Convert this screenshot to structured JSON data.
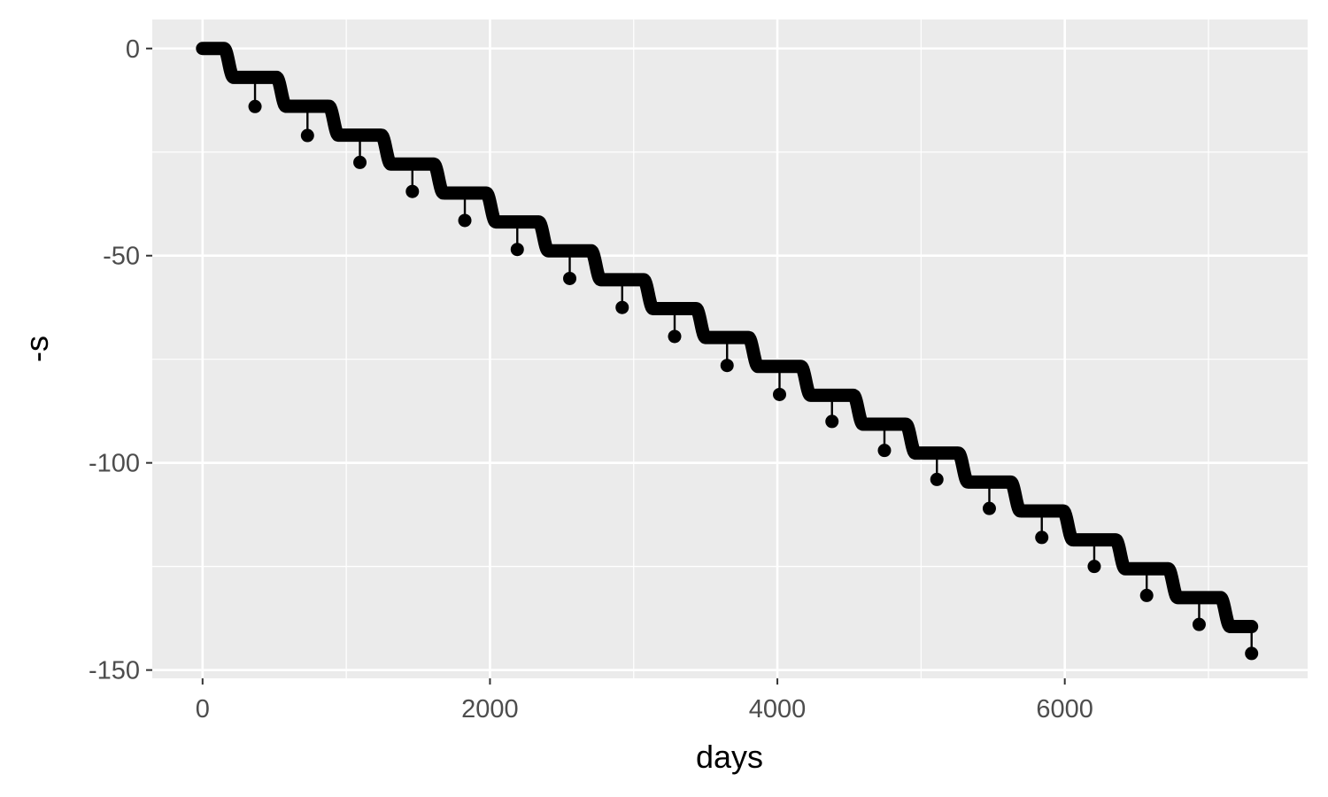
{
  "chart_data": {
    "type": "scatter",
    "xlabel": "days",
    "ylabel": "-s",
    "xlim": [
      -350,
      7690
    ],
    "ylim": [
      -152,
      7
    ],
    "x_ticks": [
      0,
      2000,
      4000,
      6000
    ],
    "x_tick_labels": [
      "0",
      "2000",
      "4000",
      "6000"
    ],
    "y_ticks": [
      0,
      -50,
      -100,
      -150
    ],
    "y_tick_labels": [
      "0",
      "-50",
      "-100",
      "-150"
    ],
    "grid": true,
    "series": [
      {
        "style": "thick continuous point trace: gradual decline of about 7 per year with a seasonal step each year",
        "x_range": [
          0,
          7300
        ],
        "y_start": 0,
        "y_end": -139.5,
        "color": "#000000"
      },
      {
        "style": "annual points with vertical drop lines from the trace",
        "points": [
          {
            "x": 365,
            "y": -14
          },
          {
            "x": 730,
            "y": -21
          },
          {
            "x": 1095,
            "y": -27.5
          },
          {
            "x": 1460,
            "y": -34.5
          },
          {
            "x": 1825,
            "y": -41.5
          },
          {
            "x": 2190,
            "y": -48.5
          },
          {
            "x": 2555,
            "y": -55.5
          },
          {
            "x": 2920,
            "y": -62.5
          },
          {
            "x": 3285,
            "y": -69.5
          },
          {
            "x": 3650,
            "y": -76.5
          },
          {
            "x": 4015,
            "y": -83.5
          },
          {
            "x": 4380,
            "y": -90
          },
          {
            "x": 4745,
            "y": -97
          },
          {
            "x": 5110,
            "y": -104
          },
          {
            "x": 5475,
            "y": -111
          },
          {
            "x": 5840,
            "y": -118
          },
          {
            "x": 6205,
            "y": -125
          },
          {
            "x": 6570,
            "y": -132
          },
          {
            "x": 6935,
            "y": -139
          },
          {
            "x": 7300,
            "y": -146
          }
        ],
        "color": "#000000"
      }
    ],
    "colors": {
      "panel": "#ebebeb",
      "grid": "#ffffff",
      "mark": "#000000",
      "tick_text": "#4d4d4d",
      "tick_mark": "#333333"
    }
  }
}
